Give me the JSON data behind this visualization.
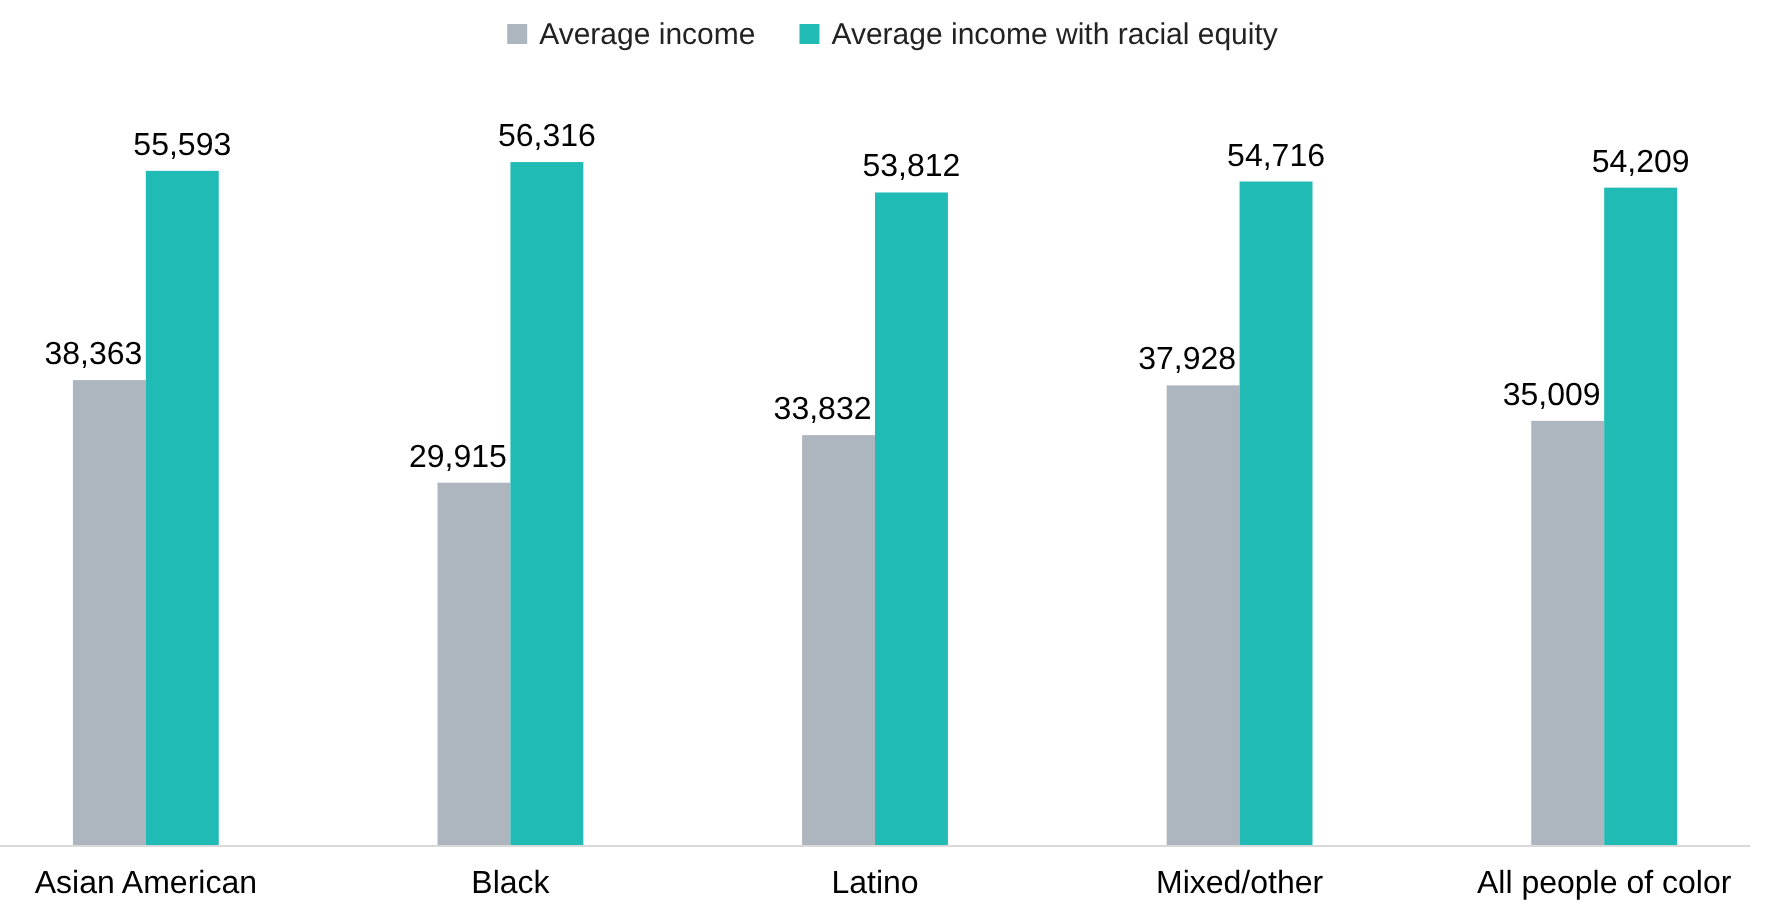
{
  "chart_data": {
    "type": "bar",
    "categories": [
      "Asian American",
      "Black",
      "Latino",
      "Mixed/other",
      "All people of color"
    ],
    "series": [
      {
        "name": "Average income",
        "color": "#adb5bf",
        "values": [
          38363,
          29915,
          33832,
          37928,
          35009
        ],
        "value_labels": [
          "38,363",
          "29,915",
          "33,832",
          "37,928",
          "35,009"
        ]
      },
      {
        "name": "Average income with racial equity",
        "color": "#21bbb5",
        "values": [
          55593,
          56316,
          53812,
          54716,
          54209
        ],
        "value_labels": [
          "55,593",
          "56,316",
          "53,812",
          "54,716",
          "54,209"
        ]
      }
    ],
    "legend": "top",
    "grid": false
  }
}
